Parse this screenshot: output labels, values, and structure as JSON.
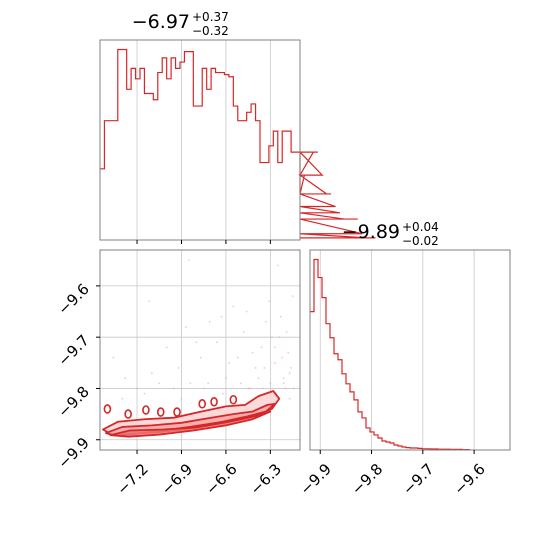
{
  "chart_data": [
    {
      "type": "histogram",
      "panel": "top-left",
      "title": {
        "main": "−6.97",
        "sup": "+0.37",
        "sub": "−0.32"
      },
      "xlim": [
        -7.45,
        -6.1
      ],
      "x_ticks": [
        -7.2,
        -6.9,
        -6.6,
        -6.3
      ],
      "grid": true,
      "color": "#d62728",
      "bin_start": -7.45,
      "bin_width": 0.03,
      "values": [
        0.34,
        0.57,
        0.57,
        0.57,
        0.91,
        0.91,
        0.72,
        0.82,
        0.77,
        0.82,
        0.7,
        0.7,
        0.67,
        0.8,
        0.87,
        0.77,
        0.87,
        0.82,
        0.85,
        0.9,
        0.9,
        0.64,
        0.64,
        0.82,
        0.72,
        0.82,
        0.8,
        0.8,
        0.79,
        0.78,
        0.64,
        0.57,
        0.57,
        0.61,
        0.65,
        0.57,
        0.37,
        0.37,
        0.45,
        0.52,
        0.37,
        0.52,
        0.52,
        0.42,
        0.42,
        0.22,
        0.31,
        0.31,
        0.42,
        0.42,
        0.31,
        0.22,
        0.22,
        0.16,
        0.13,
        0.1,
        0.1,
        0.1,
        0.1,
        0.03,
        0.01,
        0.01,
        0.01
      ]
    },
    {
      "type": "contour",
      "panel": "bottom-left",
      "xlim": [
        -7.45,
        -6.1
      ],
      "ylim": [
        -9.92,
        -9.53
      ],
      "x_ticks": [
        -7.2,
        -6.9,
        -6.6,
        -6.3
      ],
      "y_ticks": [
        -9.6,
        -9.7,
        -9.8,
        -9.9
      ],
      "grid": true,
      "color": "#d62728",
      "levels": [
        {
          "x": [
            -7.33,
            -7.15,
            -6.95,
            -6.78,
            -6.6,
            -6.47,
            -6.38,
            -6.28,
            -6.24,
            -6.29,
            -6.38,
            -6.52,
            -6.68,
            -6.86,
            -7.05,
            -7.23,
            -7.37,
            -7.43
          ],
          "y": [
            -9.865,
            -9.86,
            -9.857,
            -9.846,
            -9.835,
            -9.832,
            -9.815,
            -9.805,
            -9.82,
            -9.84,
            -9.851,
            -9.857,
            -9.868,
            -9.879,
            -9.885,
            -9.888,
            -9.89,
            -9.88
          ]
        },
        {
          "x": [
            -7.3,
            -7.1,
            -6.9,
            -6.72,
            -6.55,
            -6.42,
            -6.32,
            -6.27,
            -6.33,
            -6.46,
            -6.62,
            -6.82,
            -7.02,
            -7.2,
            -7.35,
            -7.41
          ],
          "y": [
            -9.875,
            -9.872,
            -9.867,
            -9.858,
            -9.85,
            -9.845,
            -9.832,
            -9.83,
            -9.845,
            -9.855,
            -9.865,
            -9.874,
            -9.882,
            -9.888,
            -9.892,
            -9.887
          ]
        },
        {
          "x": [
            -7.25,
            -7.02,
            -6.8,
            -6.6,
            -6.43,
            -6.33,
            -6.3,
            -6.42,
            -6.6,
            -6.82,
            -7.05,
            -7.26,
            -7.38
          ],
          "y": [
            -9.882,
            -9.88,
            -9.876,
            -9.866,
            -9.856,
            -9.848,
            -9.845,
            -9.86,
            -9.872,
            -9.882,
            -9.89,
            -9.894,
            -9.891
          ]
        }
      ],
      "islands": [
        {
          "x": -7.4,
          "y": -9.84
        },
        {
          "x": -7.26,
          "y": -9.85
        },
        {
          "x": -7.14,
          "y": -9.842
        },
        {
          "x": -7.04,
          "y": -9.846
        },
        {
          "x": -6.93,
          "y": -9.846
        },
        {
          "x": -6.76,
          "y": -9.83
        },
        {
          "x": -6.68,
          "y": -9.826
        },
        {
          "x": -6.55,
          "y": -9.822
        }
      ],
      "points": [
        [
          -7.36,
          -9.74
        ],
        [
          -7.28,
          -9.78
        ],
        [
          -7.12,
          -9.63
        ],
        [
          -7.0,
          -9.72
        ],
        [
          -6.92,
          -9.76
        ],
        [
          -6.87,
          -9.68
        ],
        [
          -6.84,
          -9.79
        ],
        [
          -6.77,
          -9.74
        ],
        [
          -6.71,
          -9.67
        ],
        [
          -6.66,
          -9.71
        ],
        [
          -6.6,
          -9.78
        ],
        [
          -6.55,
          -9.64
        ],
        [
          -6.52,
          -9.74
        ],
        [
          -6.48,
          -9.69
        ],
        [
          -6.44,
          -9.8
        ],
        [
          -6.4,
          -9.76
        ],
        [
          -6.36,
          -9.72
        ],
        [
          -6.33,
          -9.67
        ],
        [
          -6.3,
          -9.79
        ],
        [
          -6.27,
          -9.75
        ],
        [
          -6.24,
          -9.7
        ],
        [
          -6.21,
          -9.78
        ],
        [
          -6.2,
          -9.8
        ],
        [
          -6.18,
          -9.73
        ],
        [
          -6.16,
          -9.76
        ],
        [
          -6.85,
          -9.55
        ],
        [
          -6.25,
          -9.56
        ],
        [
          -6.15,
          -9.62
        ],
        [
          -7.05,
          -9.79
        ],
        [
          -7.2,
          -9.8
        ],
        [
          -6.95,
          -9.8
        ],
        [
          -6.72,
          -9.79
        ],
        [
          -6.58,
          -9.75
        ],
        [
          -6.5,
          -9.79
        ],
        [
          -6.42,
          -9.73
        ],
        [
          -6.35,
          -9.8
        ],
        [
          -6.26,
          -9.81
        ],
        [
          -6.22,
          -9.74
        ],
        [
          -6.19,
          -9.69
        ],
        [
          -6.17,
          -9.82
        ],
        [
          -7.1,
          -9.77
        ],
        [
          -6.8,
          -9.71
        ],
        [
          -6.63,
          -9.66
        ],
        [
          -6.46,
          -9.65
        ],
        [
          -6.31,
          -9.63
        ],
        [
          -6.29,
          -9.7
        ],
        [
          -6.23,
          -9.66
        ],
        [
          -6.38,
          -9.78
        ],
        [
          -6.62,
          -9.81
        ],
        [
          -6.9,
          -9.82
        ],
        [
          -7.15,
          -9.81
        ],
        [
          -7.3,
          -9.82
        ],
        [
          -6.75,
          -9.8
        ],
        [
          -6.45,
          -9.8
        ],
        [
          -6.34,
          -9.76
        ],
        [
          -6.27,
          -9.72
        ],
        [
          -6.21,
          -9.79
        ],
        [
          -6.17,
          -9.77
        ],
        [
          -6.14,
          -9.8
        ]
      ]
    },
    {
      "type": "histogram",
      "panel": "bottom-right",
      "title": {
        "main": "−9.89",
        "sup": "+0.04",
        "sub": "−0.02"
      },
      "xlim": [
        -9.92,
        -9.53
      ],
      "x_ticks": [
        -9.9,
        -9.8,
        -9.7,
        -9.6
      ],
      "grid": true,
      "color": "#d62728",
      "bin_start": -9.92,
      "bin_width": 0.0078,
      "values": [
        0.69,
        0.95,
        0.86,
        0.76,
        0.63,
        0.56,
        0.48,
        0.45,
        0.38,
        0.33,
        0.29,
        0.25,
        0.19,
        0.16,
        0.11,
        0.09,
        0.075,
        0.06,
        0.045,
        0.04,
        0.035,
        0.025,
        0.02,
        0.015,
        0.012,
        0.01,
        0.01,
        0.008,
        0.006,
        0.006,
        0.005,
        0.005,
        0.004,
        0.004,
        0.004,
        0.003,
        0.003,
        0.003,
        0.002,
        0.002
      ]
    }
  ]
}
